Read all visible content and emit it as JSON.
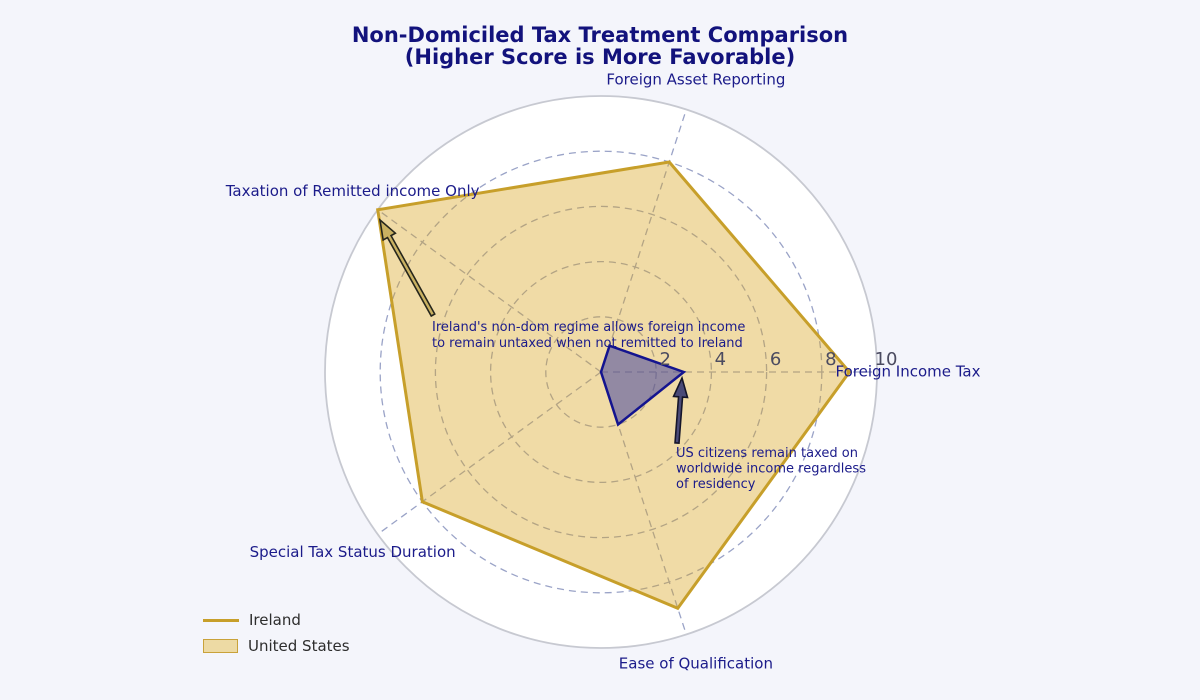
{
  "title": {
    "line1": "Non-Domiciled Tax Treatment Comparison",
    "line2": "(Higher Score is More Favorable)"
  },
  "legend": {
    "items": [
      {
        "label": "Ireland",
        "swatch": "line"
      },
      {
        "label": "United States",
        "swatch": "patch"
      }
    ]
  },
  "colors": {
    "figure_background": "#f4f5fb",
    "plot_background": "#ffffff",
    "title_navy": "#12127c",
    "axis_label_navy": "#1b1b8a",
    "tick_gray": "#4b4b60",
    "grid_blue_gray": "#9aa3c7",
    "spine_gray": "#c7c9d1",
    "ireland_gold": "#c79f2a",
    "ireland_fill": "rgba(218,165,32,0.40)",
    "us_navy": "#14148f",
    "us_fill": "rgba(70,70,160,0.55)",
    "annotation_navy": "#1b1b8a"
  },
  "chart_data": {
    "type": "radar",
    "title": "Non-Domiciled Tax Treatment Comparison (Higher Score is More Favorable)",
    "categories": [
      "Foreign Income Tax",
      "Foreign Asset Reporting",
      "Taxation of Remitted income Only",
      "Special Tax Status Duration",
      "Ease of Qualification"
    ],
    "angles_deg": [
      0,
      72,
      144,
      216,
      288
    ],
    "r_ticks": [
      2,
      4,
      6,
      8,
      10
    ],
    "r_max": 10,
    "grid": "dashed circles at r=2,4,6,8; dashed spokes; solid outer spine at r=10",
    "legend_position": "lower-left, no frame",
    "series": [
      {
        "name": "Ireland",
        "values": [
          9,
          8,
          10,
          8,
          9
        ],
        "stroke": "#c79f2a",
        "fill": "rgba(218,165,32,0.40)",
        "stroke_width": 3
      },
      {
        "name": "United States",
        "values": [
          3,
          1,
          0,
          0,
          2
        ],
        "stroke": "#14148f",
        "fill": "rgba(70,70,160,0.55)",
        "stroke_width": 2.5
      }
    ],
    "annotations": [
      {
        "id": "ireland-note",
        "text_lines": [
          "Ireland's non-dom regime allows foreign income",
          "to remain untaxed when not remitted to Ireland"
        ],
        "text_x": 432,
        "text_y": 331,
        "line_height": 16,
        "arrow": {
          "tail": [
            433,
            315
          ],
          "tip": [
            380,
            220
          ]
        },
        "arrow_fill": "#c9b161",
        "arrow_stroke": "#26261c",
        "points_to": {
          "series": "Ireland",
          "category": "Taxation of Remitted income Only",
          "value": 10
        }
      },
      {
        "id": "us-note",
        "text_lines": [
          "US citizens remain taxed on",
          "worldwide income regardless",
          "of residency"
        ],
        "text_x": 676,
        "text_y": 457,
        "line_height": 15.5,
        "arrow": {
          "tail": [
            677,
            443
          ],
          "tip": [
            682,
            378
          ]
        },
        "arrow_fill": "#4a4a78",
        "arrow_stroke": "#15152a",
        "points_to": {
          "series": "United States",
          "category": "Foreign Income Tax",
          "value": 3
        }
      }
    ]
  }
}
